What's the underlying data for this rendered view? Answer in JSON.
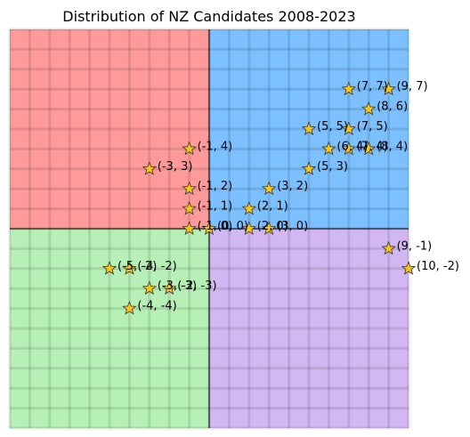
{
  "chart_data": {
    "type": "scatter",
    "title": "Distribution of NZ Candidates 2008-2023",
    "xlabel": "",
    "ylabel": "",
    "xlim": [
      -10,
      10
    ],
    "ylim": [
      -10,
      10
    ],
    "grid": true,
    "marker": "star",
    "marker_color": "#f5c518",
    "quadrants": [
      {
        "name": "top-left",
        "color": "#ff9a9a"
      },
      {
        "name": "top-right",
        "color": "#7cc0ff"
      },
      {
        "name": "bottom-left",
        "color": "#b6f0b6"
      },
      {
        "name": "bottom-right",
        "color": "#d2b8f2"
      }
    ],
    "points": [
      {
        "x": 7,
        "y": 7,
        "label": "(7, 7)"
      },
      {
        "x": 9,
        "y": 7,
        "label": "(9, 7)"
      },
      {
        "x": 8,
        "y": 6,
        "label": "(8, 6)"
      },
      {
        "x": 5,
        "y": 5,
        "label": "(5, 5)"
      },
      {
        "x": 7,
        "y": 5,
        "label": "(7, 5)"
      },
      {
        "x": 6,
        "y": 4,
        "label": "(6, 4)"
      },
      {
        "x": 7,
        "y": 4,
        "label": "(7, 4)"
      },
      {
        "x": 8,
        "y": 4,
        "label": "(8, 4)"
      },
      {
        "x": 5,
        "y": 3,
        "label": "(5, 3)"
      },
      {
        "x": 3,
        "y": 2,
        "label": "(3, 2)"
      },
      {
        "x": 2,
        "y": 1,
        "label": "(2, 1)"
      },
      {
        "x": 2,
        "y": 0,
        "label": "(2, 0)"
      },
      {
        "x": 3,
        "y": 0,
        "label": "(3, 0)"
      },
      {
        "x": 0,
        "y": 0,
        "label": "(0, 0)"
      },
      {
        "x": -1,
        "y": 0,
        "label": "(-1, 0)"
      },
      {
        "x": -1,
        "y": 4,
        "label": "(-1, 4)"
      },
      {
        "x": -3,
        "y": 3,
        "label": "(-3, 3)"
      },
      {
        "x": -1,
        "y": 2,
        "label": "(-1, 2)"
      },
      {
        "x": -1,
        "y": 1,
        "label": "(-1, 1)"
      },
      {
        "x": 9,
        "y": -1,
        "label": "(9, -1)"
      },
      {
        "x": 10,
        "y": -2,
        "label": "(10, -2)"
      },
      {
        "x": -5,
        "y": -2,
        "label": "(-5, -2)"
      },
      {
        "x": -4,
        "y": -2,
        "label": "(-4, -2)"
      },
      {
        "x": -3,
        "y": -3,
        "label": "(-3, -3)"
      },
      {
        "x": -2,
        "y": -3,
        "label": "(-2, -3)"
      },
      {
        "x": -4,
        "y": -4,
        "label": "(-4, -4)"
      }
    ]
  }
}
